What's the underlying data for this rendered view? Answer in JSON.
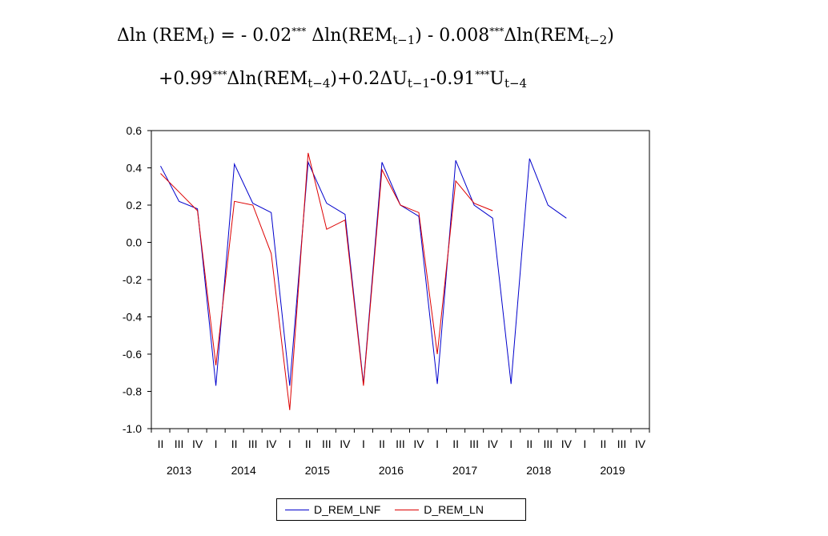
{
  "equation": {
    "line1": {
      "lhs": "Δln (REM",
      "lhs_sub": "t",
      "lhs_close": ") =  - 0.02",
      "stars1": "***",
      "term1": " Δln(REM",
      "sub1": "t−1",
      "mid": ") - 0.008",
      "stars2": "***",
      "term2": "Δln(REM",
      "sub2": "t−2",
      "close": ")"
    },
    "line2": {
      "coef": "+0.99",
      "stars1": "***",
      "term1": "Δln(REM",
      "sub1": "t−4",
      "mid": ")+0.2ΔU",
      "sub2": "t−1",
      "coef2": "-0.91",
      "stars2": "***",
      "u": "U",
      "sub3": "t−4"
    }
  },
  "chart_data": {
    "type": "line",
    "y_ticks": [
      "0.6",
      "0.4",
      "0.2",
      "0.0",
      "-0.2",
      "-0.4",
      "-0.6",
      "-0.8",
      "-1.0"
    ],
    "ylim": [
      -1.0,
      0.6
    ],
    "grid": false,
    "quarter_labels": [
      "II",
      "III",
      "IV",
      "I",
      "II",
      "III",
      "IV",
      "I",
      "II",
      "III",
      "IV",
      "I",
      "II",
      "III",
      "IV",
      "I",
      "II",
      "III",
      "IV",
      "I",
      "II",
      "III",
      "IV",
      "I",
      "II",
      "III",
      "IV"
    ],
    "year_labels": [
      {
        "year": "2013",
        "start_index": 0,
        "end_index": 2
      },
      {
        "year": "2014",
        "start_index": 3,
        "end_index": 6
      },
      {
        "year": "2015",
        "start_index": 7,
        "end_index": 10
      },
      {
        "year": "2016",
        "start_index": 11,
        "end_index": 14
      },
      {
        "year": "2017",
        "start_index": 15,
        "end_index": 18
      },
      {
        "year": "2018",
        "start_index": 19,
        "end_index": 22
      },
      {
        "year": "2019",
        "start_index": 23,
        "end_index": 26
      }
    ],
    "series": [
      {
        "name": "D_REM_LNF",
        "color": "#0000cc",
        "values": [
          0.41,
          0.22,
          0.18,
          -0.77,
          0.42,
          0.21,
          0.16,
          -0.77,
          0.43,
          0.21,
          0.15,
          -0.76,
          0.43,
          0.2,
          0.14,
          -0.76,
          0.44,
          0.2,
          0.13,
          -0.76,
          0.45,
          0.2,
          0.13
        ]
      },
      {
        "name": "D_REM_LN",
        "color": "#dd0000",
        "values": [
          0.37,
          0.27,
          0.17,
          -0.66,
          0.22,
          0.2,
          -0.06,
          -0.9,
          0.48,
          0.07,
          0.12,
          -0.77,
          0.39,
          0.2,
          0.16,
          -0.6,
          0.33,
          0.21,
          0.17
        ]
      }
    ],
    "legend_placement": "bottom-center"
  }
}
